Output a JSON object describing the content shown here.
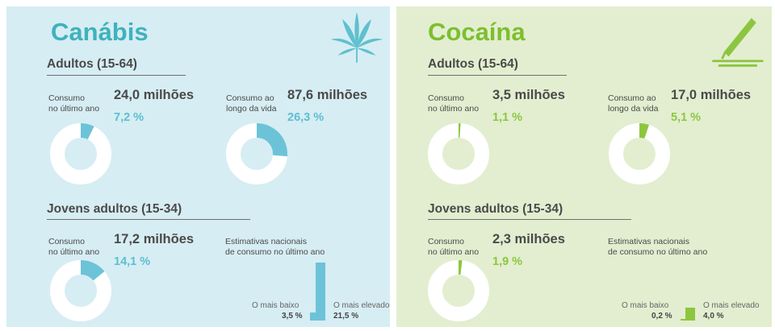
{
  "panels": [
    {
      "title": "Canábis",
      "adults_title": "Adultos (15-64)",
      "young_title": "Jovens adultos (15-34)",
      "last_year_label": [
        "Consumo",
        "no último ano"
      ],
      "lifetime_label": [
        "Consumo ao",
        "longo da vida"
      ],
      "adults_last_year": {
        "value": "24,0 milhões",
        "pct": "7,2 %"
      },
      "adults_lifetime": {
        "value": "87,6 milhões",
        "pct": "26,3 %"
      },
      "young_last_year": {
        "value": "17,2 milhões",
        "pct": "14,1 %"
      },
      "estimates_label": [
        "Estimativas nacionais",
        "de consumo no último ano"
      ],
      "lowest_label": "O mais baixo",
      "highest_label": "O mais elevado",
      "lowest_value": "3,5 %",
      "highest_value": "21,5 %",
      "icon": "cannabis-leaf-icon",
      "accent": "#3fb2bd"
    },
    {
      "title": "Cocaína",
      "adults_title": "Adultos (15-64)",
      "young_title": "Jovens adultos (15-34)",
      "last_year_label": [
        "Consumo",
        "no último ano"
      ],
      "lifetime_label": [
        "Consumo ao",
        "longo da vida"
      ],
      "adults_last_year": {
        "value": "3,5 milhões",
        "pct": "1,1 %"
      },
      "adults_lifetime": {
        "value": "17,0 milhões",
        "pct": "5,1 %"
      },
      "young_last_year": {
        "value": "2,3 milhões",
        "pct": "1,9 %"
      },
      "estimates_label": [
        "Estimativas nacionais",
        "de consumo no último ano"
      ],
      "lowest_label": "O mais baixo",
      "highest_label": "O mais elevado",
      "lowest_value": "0,2 %",
      "highest_value": "4,0 %",
      "icon": "cocaine-line-straw-icon",
      "accent": "#7dbf2f"
    }
  ],
  "chart_data": [
    {
      "type": "pie",
      "title": "Canábis - Adultos (15-64) - Consumo no último ano",
      "values": [
        7.2,
        92.8
      ],
      "categories": [
        "Consumo",
        "Resto"
      ]
    },
    {
      "type": "pie",
      "title": "Canábis - Adultos (15-64) - Consumo ao longo da vida",
      "values": [
        26.3,
        73.7
      ],
      "categories": [
        "Consumo",
        "Resto"
      ]
    },
    {
      "type": "pie",
      "title": "Canábis - Jovens adultos (15-34) - Consumo no último ano",
      "values": [
        14.1,
        85.9
      ],
      "categories": [
        "Consumo",
        "Resto"
      ]
    },
    {
      "type": "bar",
      "title": "Canábis - Estimativas nacionais de consumo no último ano",
      "categories": [
        "O mais baixo",
        "O mais elevado"
      ],
      "values": [
        3.5,
        21.5
      ]
    },
    {
      "type": "pie",
      "title": "Cocaína - Adultos (15-64) - Consumo no último ano",
      "values": [
        1.1,
        98.9
      ],
      "categories": [
        "Consumo",
        "Resto"
      ]
    },
    {
      "type": "pie",
      "title": "Cocaína - Adultos (15-64) - Consumo ao longo da vida",
      "values": [
        5.1,
        94.9
      ],
      "categories": [
        "Consumo",
        "Resto"
      ]
    },
    {
      "type": "pie",
      "title": "Cocaína - Jovens adultos (15-34) - Consumo no último ano",
      "values": [
        1.9,
        98.1
      ],
      "categories": [
        "Consumo",
        "Resto"
      ]
    },
    {
      "type": "bar",
      "title": "Cocaína - Estimativas nacionais de consumo no último ano",
      "categories": [
        "O mais baixo",
        "O mais elevado"
      ],
      "values": [
        0.2,
        4.0
      ]
    }
  ]
}
